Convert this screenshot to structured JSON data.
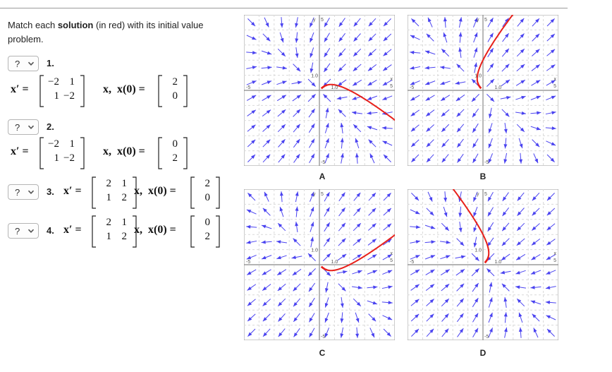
{
  "prompt": {
    "before": "Match each solution (in red) with its initial value",
    "bold": "solution",
    "pre": "Match each ",
    "post": " (in red) with its initial value",
    "line2": "problem."
  },
  "questions": [
    {
      "num": "1.",
      "select": "?",
      "mat": [
        "−2",
        "1",
        "1",
        "−2"
      ],
      "ic": [
        "2",
        "0"
      ]
    },
    {
      "num": "2.",
      "select": "?",
      "mat": [
        "−2",
        "1",
        "1",
        "−2"
      ],
      "ic": [
        "0",
        "2"
      ]
    },
    {
      "num": "3.",
      "select": "?",
      "mat": [
        "2",
        "1",
        "1",
        "2"
      ],
      "ic": [
        "2",
        "0"
      ]
    },
    {
      "num": "4.",
      "select": "?",
      "mat": [
        "2",
        "1",
        "1",
        "2"
      ],
      "ic": [
        "0",
        "2"
      ]
    }
  ],
  "math": {
    "xprime": "x′ =",
    "x": "x,",
    "x0": "x(0) ="
  },
  "plots": [
    {
      "label": "A",
      "field": "sink",
      "ic": [
        2,
        0
      ]
    },
    {
      "label": "B",
      "field": "source",
      "ic": [
        0,
        2
      ]
    },
    {
      "label": "C",
      "field": "source",
      "ic": [
        2,
        0
      ]
    },
    {
      "label": "D",
      "field": "sink",
      "ic": [
        0,
        2
      ]
    }
  ],
  "axis_labels": {
    "y": "y",
    "top": "5",
    "bottom": "-5",
    "left": "-5",
    "right": "5",
    "x": "x",
    "one_x": "1.0",
    "one_y": "1.0"
  },
  "colors": {
    "arrow": "#4a43f0",
    "solution": "#e8201a",
    "axis": "#888888",
    "grid": "#d9d9d9"
  },
  "icons": {
    "select_chevron": "chevron-down-icon"
  }
}
